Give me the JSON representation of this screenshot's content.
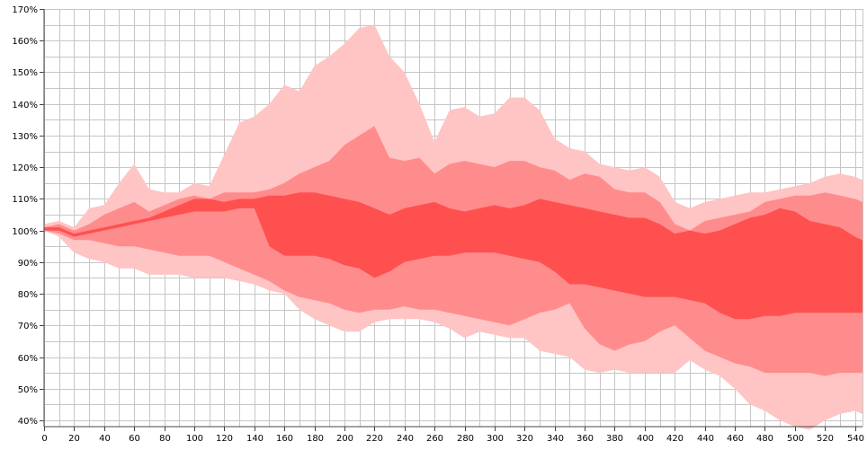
{
  "chart_data": {
    "type": "area",
    "title": "",
    "xlabel": "",
    "ylabel": "",
    "xlim": [
      0,
      545
    ],
    "ylim": [
      0.38,
      1.7
    ],
    "x_ticks": [
      0,
      20,
      40,
      60,
      80,
      100,
      120,
      140,
      160,
      180,
      200,
      220,
      240,
      260,
      280,
      300,
      320,
      340,
      360,
      380,
      400,
      420,
      440,
      460,
      480,
      500,
      520,
      540
    ],
    "x_tick_labels": [
      "0",
      "20",
      "40",
      "60",
      "80",
      "100",
      "120",
      "140",
      "160",
      "180",
      "200",
      "220",
      "240",
      "260",
      "280",
      "300",
      "320",
      "340",
      "360",
      "380",
      "400",
      "420",
      "440",
      "460",
      "480",
      "500",
      "520",
      "540"
    ],
    "y_ticks": [
      0.4,
      0.5,
      0.6,
      0.7,
      0.8,
      0.9,
      1.0,
      1.1,
      1.2,
      1.3,
      1.4,
      1.5,
      1.6,
      1.7
    ],
    "y_tick_labels": [
      "40%",
      "50%",
      "60%",
      "70%",
      "80%",
      "90%",
      "100%",
      "110%",
      "120%",
      "130%",
      "140%",
      "150%",
      "160%",
      "170%"
    ],
    "grid": true,
    "minor_grid_x_step": 10,
    "minor_grid_y_step": 0.05,
    "colors": {
      "outer": "#ffc4c4",
      "middle": "#ff8c8c",
      "inner": "#ff5050",
      "grid": "#c6c6c6",
      "axis": "#444444"
    },
    "x": [
      0,
      10,
      20,
      30,
      40,
      50,
      60,
      70,
      80,
      90,
      100,
      110,
      120,
      130,
      140,
      150,
      160,
      170,
      180,
      190,
      200,
      210,
      220,
      230,
      240,
      250,
      260,
      270,
      280,
      290,
      300,
      310,
      320,
      330,
      340,
      350,
      360,
      370,
      380,
      390,
      400,
      410,
      420,
      430,
      440,
      450,
      460,
      470,
      480,
      490,
      500,
      510,
      520,
      530,
      540,
      545
    ],
    "bands": [
      {
        "band": "outer",
        "upper": [
          1.02,
          1.03,
          1.01,
          1.07,
          1.08,
          1.15,
          1.21,
          1.13,
          1.12,
          1.12,
          1.15,
          1.14,
          1.24,
          1.34,
          1.36,
          1.4,
          1.46,
          1.44,
          1.52,
          1.55,
          1.59,
          1.64,
          1.65,
          1.55,
          1.5,
          1.4,
          1.28,
          1.38,
          1.39,
          1.36,
          1.37,
          1.42,
          1.42,
          1.38,
          1.29,
          1.26,
          1.25,
          1.21,
          1.2,
          1.19,
          1.2,
          1.17,
          1.09,
          1.07,
          1.09,
          1.1,
          1.11,
          1.12,
          1.12,
          1.13,
          1.14,
          1.15,
          1.17,
          1.18,
          1.17,
          1.16
        ],
        "lower": [
          1.0,
          0.98,
          0.93,
          0.91,
          0.9,
          0.88,
          0.88,
          0.86,
          0.86,
          0.86,
          0.85,
          0.85,
          0.85,
          0.84,
          0.83,
          0.81,
          0.8,
          0.75,
          0.72,
          0.7,
          0.68,
          0.68,
          0.71,
          0.72,
          0.72,
          0.72,
          0.71,
          0.69,
          0.66,
          0.68,
          0.67,
          0.66,
          0.66,
          0.62,
          0.61,
          0.6,
          0.56,
          0.55,
          0.56,
          0.55,
          0.55,
          0.55,
          0.55,
          0.59,
          0.56,
          0.54,
          0.5,
          0.45,
          0.43,
          0.4,
          0.38,
          0.37,
          0.4,
          0.42,
          0.43,
          0.42
        ]
      },
      {
        "band": "middle",
        "upper": [
          1.01,
          1.02,
          1.0,
          1.02,
          1.05,
          1.07,
          1.09,
          1.06,
          1.08,
          1.1,
          1.11,
          1.1,
          1.12,
          1.12,
          1.12,
          1.13,
          1.15,
          1.18,
          1.2,
          1.22,
          1.27,
          1.3,
          1.33,
          1.23,
          1.22,
          1.23,
          1.18,
          1.21,
          1.22,
          1.21,
          1.2,
          1.22,
          1.22,
          1.2,
          1.19,
          1.16,
          1.18,
          1.17,
          1.13,
          1.12,
          1.12,
          1.09,
          1.02,
          1.0,
          1.03,
          1.04,
          1.05,
          1.06,
          1.09,
          1.1,
          1.11,
          1.11,
          1.12,
          1.11,
          1.1,
          1.09
        ],
        "lower": [
          1.0,
          0.99,
          0.97,
          0.97,
          0.96,
          0.95,
          0.95,
          0.94,
          0.93,
          0.92,
          0.92,
          0.92,
          0.9,
          0.88,
          0.86,
          0.84,
          0.81,
          0.79,
          0.78,
          0.77,
          0.75,
          0.74,
          0.75,
          0.75,
          0.76,
          0.75,
          0.75,
          0.74,
          0.73,
          0.72,
          0.71,
          0.7,
          0.72,
          0.74,
          0.75,
          0.77,
          0.69,
          0.64,
          0.62,
          0.64,
          0.65,
          0.68,
          0.7,
          0.66,
          0.62,
          0.6,
          0.58,
          0.57,
          0.55,
          0.55,
          0.55,
          0.55,
          0.54,
          0.55,
          0.55,
          0.55
        ]
      },
      {
        "band": "inner",
        "upper": [
          1.01,
          1.01,
          0.99,
          1.0,
          1.01,
          1.02,
          1.03,
          1.04,
          1.06,
          1.08,
          1.1,
          1.1,
          1.09,
          1.1,
          1.1,
          1.11,
          1.11,
          1.12,
          1.12,
          1.11,
          1.1,
          1.09,
          1.07,
          1.05,
          1.07,
          1.08,
          1.09,
          1.07,
          1.06,
          1.07,
          1.08,
          1.07,
          1.08,
          1.1,
          1.09,
          1.08,
          1.07,
          1.06,
          1.05,
          1.04,
          1.04,
          1.02,
          0.99,
          1.0,
          0.99,
          1.0,
          1.02,
          1.04,
          1.05,
          1.07,
          1.06,
          1.03,
          1.02,
          1.01,
          0.98,
          0.97
        ],
        "lower": [
          1.0,
          1.0,
          0.98,
          0.99,
          1.0,
          1.01,
          1.02,
          1.03,
          1.04,
          1.05,
          1.06,
          1.06,
          1.06,
          1.07,
          1.07,
          0.95,
          0.92,
          0.92,
          0.92,
          0.91,
          0.89,
          0.88,
          0.85,
          0.87,
          0.9,
          0.91,
          0.92,
          0.92,
          0.93,
          0.93,
          0.93,
          0.92,
          0.91,
          0.9,
          0.87,
          0.83,
          0.83,
          0.82,
          0.81,
          0.8,
          0.79,
          0.79,
          0.79,
          0.78,
          0.77,
          0.74,
          0.72,
          0.72,
          0.73,
          0.73,
          0.74,
          0.74,
          0.74,
          0.74,
          0.74,
          0.74
        ]
      }
    ]
  }
}
